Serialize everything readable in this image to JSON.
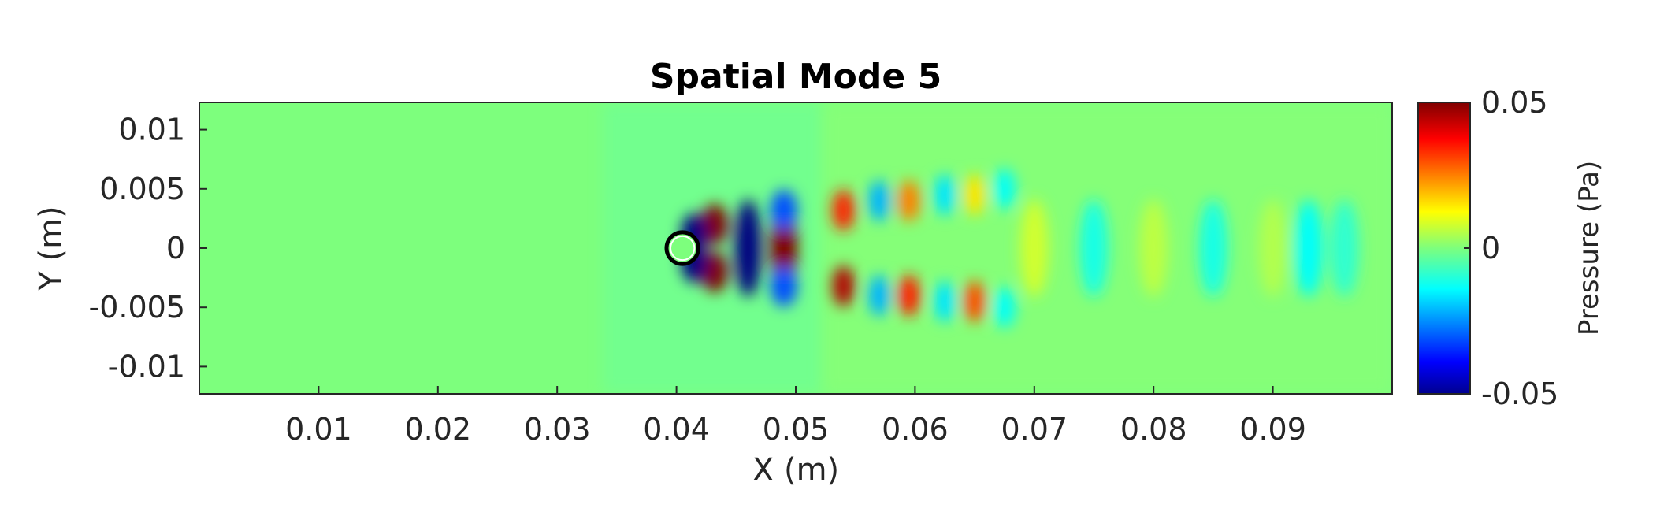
{
  "chart_data": {
    "type": "heatmap",
    "title": "Spatial Mode 5",
    "xlabel": "X (m)",
    "ylabel": "Y (m)",
    "xlim": [
      0,
      0.1
    ],
    "ylim": [
      -0.0123,
      0.0123
    ],
    "x_ticks": [
      {
        "value": 0.01,
        "label": "0.01"
      },
      {
        "value": 0.02,
        "label": "0.02"
      },
      {
        "value": 0.03,
        "label": "0.03"
      },
      {
        "value": 0.04,
        "label": "0.04"
      },
      {
        "value": 0.05,
        "label": "0.05"
      },
      {
        "value": 0.06,
        "label": "0.06"
      },
      {
        "value": 0.07,
        "label": "0.07"
      },
      {
        "value": 0.08,
        "label": "0.08"
      },
      {
        "value": 0.09,
        "label": "0.09"
      }
    ],
    "y_ticks": [
      {
        "value": 0.01,
        "label": "0.01"
      },
      {
        "value": 0.005,
        "label": "0.005"
      },
      {
        "value": 0,
        "label": "0"
      },
      {
        "value": -0.005,
        "label": "-0.005"
      },
      {
        "value": -0.01,
        "label": "-0.01"
      }
    ],
    "colorbar": {
      "label": "Pressure (Pa)",
      "colormap": "jet",
      "clim": [
        -0.05,
        0.05
      ],
      "ticks": [
        {
          "value": 0.05,
          "label": "0.05"
        },
        {
          "value": 0,
          "label": "0"
        },
        {
          "value": -0.05,
          "label": "-0.05"
        }
      ]
    },
    "cylinder": {
      "center_x": 0.0405,
      "center_y": 0,
      "radius": 0.0012
    },
    "background_value": 0,
    "pressure_features": [
      {
        "x": 0.0432,
        "y": 0.002,
        "value": 0.05
      },
      {
        "x": 0.0432,
        "y": -0.002,
        "value": 0.05
      },
      {
        "x": 0.0415,
        "y": 0.0012,
        "value": -0.05
      },
      {
        "x": 0.0415,
        "y": -0.0012,
        "value": -0.05
      },
      {
        "x": 0.046,
        "y": 0.0,
        "value": -0.05
      },
      {
        "x": 0.049,
        "y": 0.0,
        "value": 0.05
      },
      {
        "x": 0.049,
        "y": 0.0032,
        "value": -0.03
      },
      {
        "x": 0.049,
        "y": -0.0032,
        "value": -0.03
      },
      {
        "x": 0.054,
        "y": 0.0032,
        "value": 0.035
      },
      {
        "x": 0.054,
        "y": -0.0032,
        "value": 0.045
      },
      {
        "x": 0.057,
        "y": 0.004,
        "value": -0.02
      },
      {
        "x": 0.057,
        "y": -0.004,
        "value": -0.02
      },
      {
        "x": 0.0595,
        "y": 0.004,
        "value": 0.025
      },
      {
        "x": 0.0595,
        "y": -0.004,
        "value": 0.035
      },
      {
        "x": 0.0625,
        "y": 0.0045,
        "value": -0.015
      },
      {
        "x": 0.0625,
        "y": -0.0045,
        "value": -0.015
      },
      {
        "x": 0.065,
        "y": 0.0045,
        "value": 0.015
      },
      {
        "x": 0.065,
        "y": -0.0045,
        "value": 0.03
      },
      {
        "x": 0.0675,
        "y": 0.005,
        "value": -0.012
      },
      {
        "x": 0.0675,
        "y": -0.005,
        "value": -0.012
      },
      {
        "x": 0.07,
        "y": 0.0,
        "value": 0.008
      },
      {
        "x": 0.075,
        "y": 0.0,
        "value": -0.01
      },
      {
        "x": 0.08,
        "y": 0.0,
        "value": 0.006
      },
      {
        "x": 0.085,
        "y": 0.0,
        "value": -0.01
      },
      {
        "x": 0.09,
        "y": 0.0,
        "value": 0.005
      },
      {
        "x": 0.093,
        "y": 0.0,
        "value": -0.012
      },
      {
        "x": 0.096,
        "y": 0.0,
        "value": -0.008
      }
    ]
  }
}
